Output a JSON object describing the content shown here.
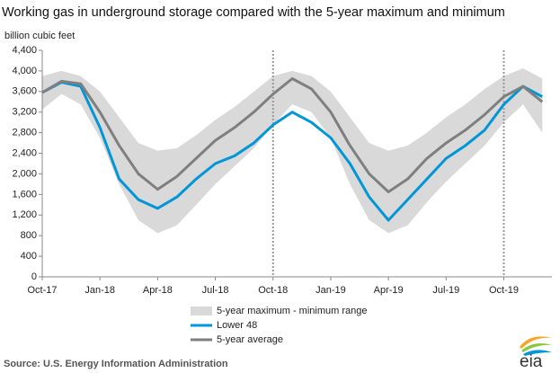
{
  "chart_data": {
    "type": "line",
    "title": "Working gas in underground  storage compared with the 5-year maximum and minimum",
    "y_label": "billion cubic feet",
    "source": "Source:  U.S. Energy Information Administration",
    "logo": "eia",
    "x": [
      0,
      1,
      2,
      3,
      4,
      5,
      6,
      7,
      8,
      9,
      10,
      11,
      12,
      13,
      14,
      15,
      16,
      17,
      18,
      19,
      20,
      21,
      22,
      23,
      24,
      25,
      26
    ],
    "xlim": [
      0,
      26.5
    ],
    "xticks": [
      {
        "value": 0,
        "label": "Oct-17"
      },
      {
        "value": 3,
        "label": "Jan-18"
      },
      {
        "value": 6,
        "label": "Apr-18"
      },
      {
        "value": 9,
        "label": "Jul-18"
      },
      {
        "value": 12,
        "label": "Oct-18"
      },
      {
        "value": 15,
        "label": "Jan-19"
      },
      {
        "value": 18,
        "label": "Apr-19"
      },
      {
        "value": 21,
        "label": "Jul-19"
      },
      {
        "value": 24,
        "label": "Oct-19"
      }
    ],
    "ylim": [
      0,
      4400
    ],
    "yticks": [
      0,
      400,
      800,
      {
        "value": 1200,
        "label": "1,200"
      },
      {
        "value": 1600,
        "label": "1,600"
      },
      {
        "value": 2000,
        "label": "2,000"
      },
      {
        "value": 2400,
        "label": "2,400"
      },
      {
        "value": 2800,
        "label": "2,800"
      },
      {
        "value": 3200,
        "label": "3,200"
      },
      {
        "value": 3600,
        "label": "3,600"
      },
      {
        "value": 4000,
        "label": "4,000"
      },
      {
        "value": 4400,
        "label": "4,400"
      }
    ],
    "vlines": [
      12,
      24
    ],
    "band": {
      "name": "5-year maximum - minimum range",
      "color": "#d9d9d9",
      "max": [
        3900,
        4000,
        3900,
        3600,
        3100,
        2600,
        2450,
        2500,
        2750,
        3050,
        3300,
        3600,
        3900,
        4000,
        3900,
        3600,
        3100,
        2600,
        2450,
        2550,
        2800,
        3100,
        3350,
        3650,
        3900,
        4050,
        3850
      ],
      "min": [
        3250,
        3550,
        3350,
        2700,
        1800,
        1100,
        850,
        1000,
        1400,
        1800,
        2150,
        2500,
        2950,
        3350,
        3200,
        2700,
        1800,
        1100,
        850,
        1000,
        1450,
        1850,
        2200,
        2550,
        3000,
        3350,
        2800
      ]
    },
    "series": [
      {
        "name": "Lower 48",
        "color": "#0096d7",
        "values": [
          3580,
          3780,
          3700,
          2900,
          1900,
          1500,
          1330,
          1550,
          1900,
          2200,
          2350,
          2600,
          2950,
          3200,
          3000,
          2700,
          2200,
          1550,
          1100,
          1500,
          1900,
          2300,
          2550,
          2850,
          3350,
          3700,
          3500
        ]
      },
      {
        "name": "5-year average",
        "color": "#7f7f7f",
        "values": [
          3580,
          3800,
          3750,
          3200,
          2550,
          2000,
          1700,
          1950,
          2300,
          2650,
          2900,
          3200,
          3550,
          3850,
          3650,
          3200,
          2550,
          2000,
          1650,
          1900,
          2300,
          2600,
          2850,
          3150,
          3500,
          3700,
          3400
        ]
      }
    ]
  }
}
